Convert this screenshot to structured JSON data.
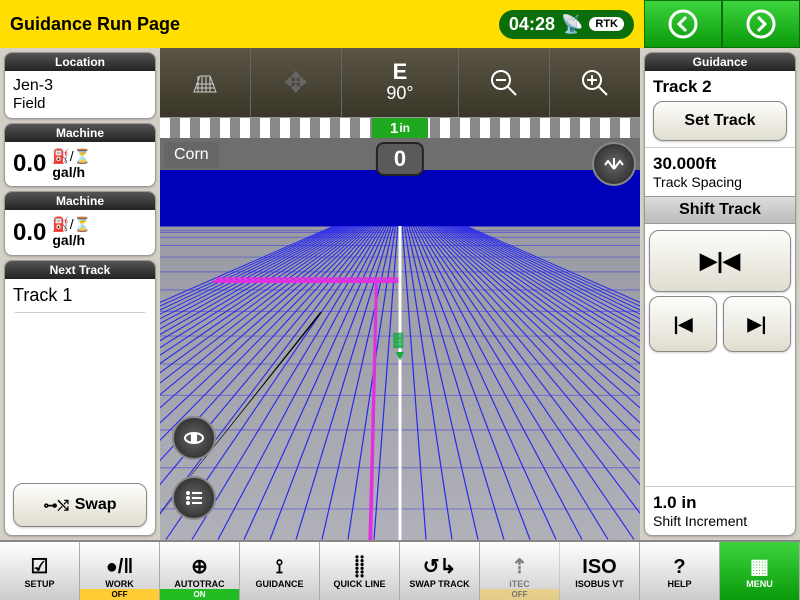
{
  "header": {
    "title": "Guidance Run Page",
    "time": "04:28",
    "gps_mode": "RTK"
  },
  "left": {
    "location": {
      "header": "Location",
      "name": "Jen-3",
      "type": "Field"
    },
    "machine1": {
      "header": "Machine",
      "value": "0.0",
      "unit": "gal/h"
    },
    "machine2": {
      "header": "Machine",
      "value": "0.0",
      "unit": "gal/h"
    },
    "next_track": {
      "header": "Next Track",
      "name": "Track 1",
      "swap_label": "Swap"
    }
  },
  "toolbar": {
    "compass_dir": "E",
    "compass_deg": "90°"
  },
  "scale": {
    "value": "1",
    "unit": "in"
  },
  "field": {
    "crop": "Corn",
    "pass_number": "0",
    "colors": {
      "sky": "#6e6e6e",
      "horizon_band": "#0000bb",
      "ground": "#a0a0aa",
      "guideline": "#3030ff",
      "active_line": "#ffffff",
      "path": "#e030e0"
    }
  },
  "right": {
    "header": "Guidance",
    "track_name": "Track 2",
    "set_track_label": "Set Track",
    "spacing_value": "30.000ft",
    "spacing_label": "Track Spacing",
    "shift_header": "Shift Track",
    "increment_value": "1.0 in",
    "increment_label": "Shift Increment"
  },
  "bottom": {
    "items": [
      {
        "label": "SETUP",
        "icon": "☑",
        "status": ""
      },
      {
        "label": "WORK",
        "icon": "●/‖",
        "status": "OFF"
      },
      {
        "label": "AUTOTRAC",
        "icon": "⊕",
        "status": "ON"
      },
      {
        "label": "GUIDANCE",
        "icon": "⟟",
        "status": ""
      },
      {
        "label": "QUICK LINE",
        "icon": "⸽⸽",
        "status": ""
      },
      {
        "label": "SWAP TRACK",
        "icon": "↺↳",
        "status": ""
      },
      {
        "label": "iTEC",
        "icon": "⇡",
        "status": "OFF",
        "disabled": true
      },
      {
        "label": "ISOBUS VT",
        "icon": "ISO",
        "status": ""
      },
      {
        "label": "HELP",
        "icon": "?",
        "status": ""
      },
      {
        "label": "MENU",
        "icon": "▦",
        "status": "",
        "menu": true
      }
    ]
  }
}
